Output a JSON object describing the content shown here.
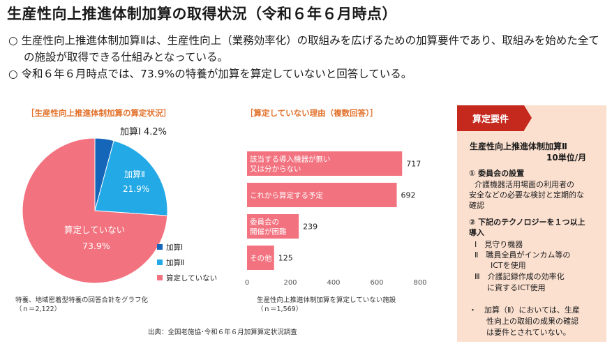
{
  "title": "生産性向上推進体制加算の取得状況（令和６年６月時点）",
  "bullets": [
    "○ 生産性向上推進体制加算Ⅱは、生産性向上（業務効率化）の取組みを広げるための加算要件であり、取組みを始めた全ての施設が取得できる仕組みとなっている。",
    "○ 令和６年６月時点では、73.9%の特養が加算を算定していないと回答している。"
  ],
  "pie": {
    "title": "［生産性向上推進体制加算の算定状況］",
    "labels": {
      "kasan1": "加算Ⅰ 4.2%",
      "kasan2_name": "加算Ⅱ",
      "kasan2_value": "21.9%",
      "none_name": "算定していない",
      "none_value": "73.9%"
    },
    "legend": [
      "加算Ⅰ",
      "加算Ⅱ",
      "算定していない"
    ],
    "note_line1": "特養、地域密着型特養の回答合計をグラフ化",
    "note_line2": "（ｎ＝2,122）",
    "colors": {
      "kasan1": "#1565b8",
      "kasan2": "#22a9e6",
      "none": "#f2737f"
    }
  },
  "bar": {
    "title": "［算定していない理由（複数回答）］",
    "note_line1": "生産性向上推進体制加算を算定していない施設",
    "note_line2": "（ｎ＝1,569）",
    "color": "#f2737f"
  },
  "chart_data": [
    {
      "type": "pie",
      "title": "［生産性向上推進体制加算の算定状況］",
      "categories": [
        "加算Ⅰ",
        "加算Ⅱ",
        "算定していない"
      ],
      "values": [
        4.2,
        21.9,
        73.9
      ],
      "legend": "right-bottom"
    },
    {
      "type": "bar",
      "orientation": "horizontal",
      "title": "［算定していない理由（複数回答）］",
      "categories": [
        [
          "該当する導入機器が無い",
          "又は分からない"
        ],
        [
          "これから算定する予定"
        ],
        [
          "委員会の",
          "開催が困難"
        ],
        [
          "その他"
        ]
      ],
      "values": [
        717,
        692,
        239,
        125
      ],
      "xlim": [
        0,
        800
      ],
      "xticks": [
        "0",
        "200",
        "400",
        "600",
        "800"
      ],
      "grid": false
    }
  ],
  "panel": {
    "tag": "算定要件",
    "heading1": "生産性向上推進体制加算Ⅱ",
    "heading2": "10単位/月",
    "item1_title": "① 委員会の設置",
    "item1_l1": "介護機器活用場面の利用者の",
    "item1_l2": "安全などの必要な検討と定期的な",
    "item1_l3": "確認",
    "item2_title_l1": "② 下記のテクノロジーを１つ以上",
    "item2_title_l2": "導入",
    "t1": "Ⅰ　見守り機器",
    "t2_l1": "Ⅱ　職員全員がインカム等の",
    "t2_l2": "ICTを使用",
    "t3_l1": "Ⅲ　介護記録作成の効率化",
    "t3_l2": "に資するICT使用",
    "note_l1": "・　加算（Ⅱ）においては、生産",
    "note_l2": "性向上の取組の成果の確認",
    "note_l3": "は要件とされていない。"
  },
  "source": "出典：全国老施協･令和６年６月加算算定状況調査"
}
